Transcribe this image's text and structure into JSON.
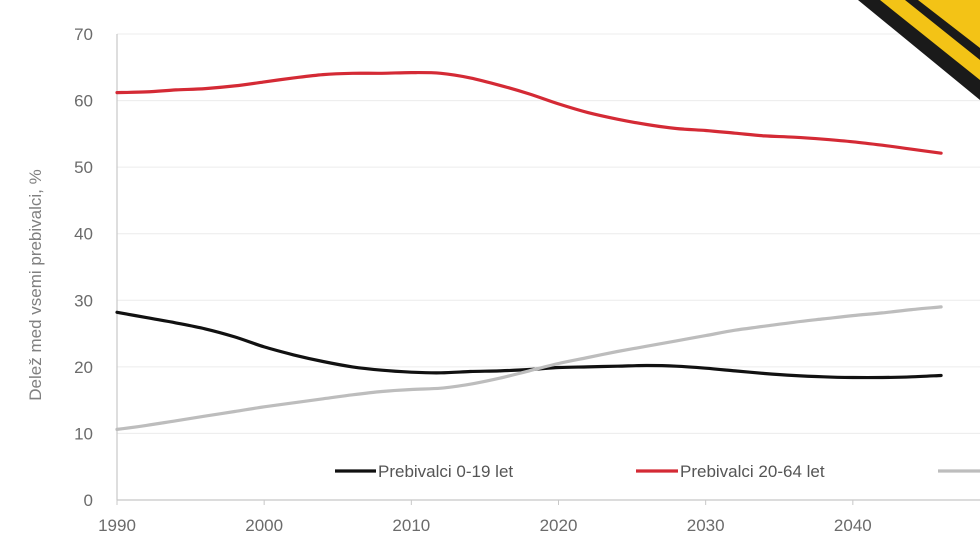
{
  "chart_data": {
    "type": "line",
    "title": "",
    "xlabel": "",
    "ylabel": "Delež med vsemi prebivalci, %",
    "xlim": [
      1990,
      2050
    ],
    "ylim": [
      0,
      70
    ],
    "x_ticks": [
      1990,
      2000,
      2010,
      2020,
      2030,
      2040
    ],
    "y_ticks": [
      0,
      10,
      20,
      30,
      40,
      50,
      60,
      70
    ],
    "grid": "horizontal",
    "legend_position": "bottom-inside",
    "series": [
      {
        "name": "Prebivalci 0-19 let",
        "color": "#111111",
        "x": [
          1990,
          1992,
          1994,
          1996,
          1998,
          2000,
          2002,
          2004,
          2006,
          2008,
          2010,
          2012,
          2014,
          2016,
          2018,
          2020,
          2022,
          2024,
          2026,
          2028,
          2030,
          2032,
          2034,
          2036,
          2038,
          2040,
          2042,
          2044,
          2046
        ],
        "values": [
          28.2,
          27.4,
          26.6,
          25.7,
          24.5,
          23.0,
          21.8,
          20.8,
          20.0,
          19.5,
          19.2,
          19.1,
          19.3,
          19.4,
          19.6,
          19.9,
          20.0,
          20.1,
          20.2,
          20.1,
          19.8,
          19.4,
          19.0,
          18.7,
          18.5,
          18.4,
          18.4,
          18.5,
          18.7
        ]
      },
      {
        "name": "Prebivalci 20-64 let",
        "color": "#d42a35",
        "x": [
          1990,
          1992,
          1994,
          1996,
          1998,
          2000,
          2002,
          2004,
          2006,
          2008,
          2010,
          2012,
          2014,
          2016,
          2018,
          2020,
          2022,
          2024,
          2026,
          2028,
          2030,
          2032,
          2034,
          2036,
          2038,
          2040,
          2042,
          2044,
          2046
        ],
        "values": [
          61.2,
          61.3,
          61.6,
          61.8,
          62.2,
          62.8,
          63.4,
          63.9,
          64.1,
          64.1,
          64.2,
          64.1,
          63.4,
          62.3,
          61.0,
          59.5,
          58.2,
          57.2,
          56.4,
          55.8,
          55.5,
          55.1,
          54.7,
          54.5,
          54.2,
          53.8,
          53.3,
          52.7,
          52.1
        ]
      },
      {
        "name": "",
        "color": "#bdbdbd",
        "x": [
          1990,
          1992,
          1994,
          1996,
          1998,
          2000,
          2002,
          2004,
          2006,
          2008,
          2010,
          2012,
          2014,
          2016,
          2018,
          2020,
          2022,
          2024,
          2026,
          2028,
          2030,
          2032,
          2034,
          2036,
          2038,
          2040,
          2042,
          2044,
          2046
        ],
        "values": [
          10.6,
          11.2,
          11.9,
          12.6,
          13.3,
          14.0,
          14.6,
          15.2,
          15.8,
          16.3,
          16.6,
          16.8,
          17.4,
          18.3,
          19.4,
          20.5,
          21.4,
          22.3,
          23.1,
          23.9,
          24.7,
          25.5,
          26.1,
          26.7,
          27.2,
          27.7,
          28.1,
          28.6,
          29.0
        ]
      }
    ]
  },
  "decoration": {
    "road_sign_icon": "warning-road-sign-corner"
  }
}
